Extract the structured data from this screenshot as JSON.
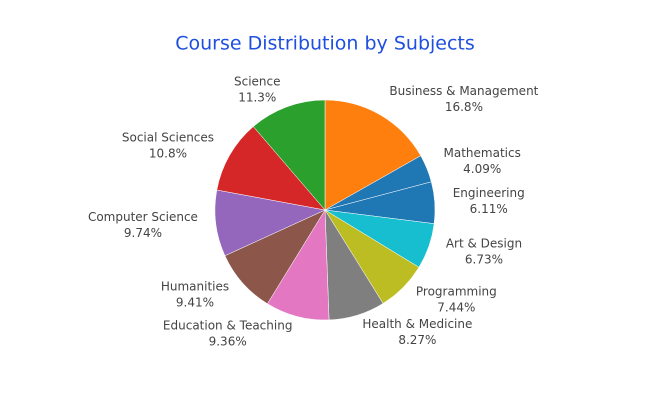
{
  "chart_data": {
    "type": "pie",
    "title": "Course Distribution by Subjects",
    "categories": [
      "Business & Management",
      "Mathematics",
      "Engineering",
      "Art & Design",
      "Programming",
      "Health & Medicine",
      "Education & Teaching",
      "Humanities",
      "Computer Science",
      "Social Sciences",
      "Science"
    ],
    "values": [
      16.8,
      4.09,
      6.11,
      6.73,
      7.44,
      8.27,
      9.36,
      9.41,
      9.74,
      10.8,
      11.3
    ],
    "value_labels": [
      "16.8%",
      "4.09%",
      "6.11%",
      "6.73%",
      "7.44%",
      "8.27%",
      "9.36%",
      "9.41%",
      "9.74%",
      "10.8%",
      "11.3%"
    ],
    "colors": [
      "#ff7f0e",
      "#1f77b4",
      "#1f77b4",
      "#17becf",
      "#bcbd22",
      "#7f7f7f",
      "#e377c2",
      "#8c564b",
      "#9467bd",
      "#d62728",
      "#2ca02c"
    ]
  }
}
